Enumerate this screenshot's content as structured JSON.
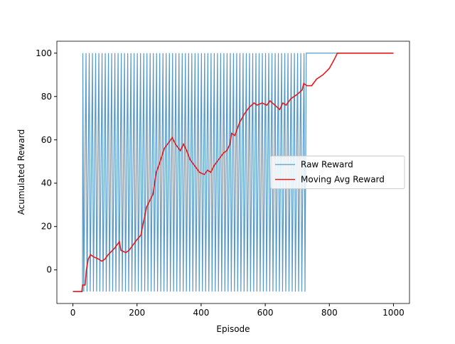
{
  "chart_data": {
    "type": "line",
    "xlabel": "Episode",
    "ylabel": "Acumulated Reward",
    "xlim": [
      -50,
      1050
    ],
    "ylim": [
      -15.5,
      105.5
    ],
    "xticks": [
      0,
      200,
      400,
      600,
      800,
      1000
    ],
    "yticks": [
      0,
      20,
      40,
      60,
      80,
      100
    ],
    "legend": "center right",
    "series": [
      {
        "name": "Raw Reward",
        "color": "#1f77b4",
        "x": [
          0,
          30,
          31,
          34,
          41,
          44,
          51,
          54,
          61,
          64,
          71,
          74,
          81,
          84,
          91,
          94,
          101,
          104,
          111,
          114,
          121,
          124,
          131,
          134,
          141,
          144,
          151,
          154,
          161,
          164,
          171,
          174,
          181,
          184,
          191,
          194,
          201,
          204,
          211,
          214,
          221,
          224,
          231,
          234,
          241,
          244,
          251,
          254,
          261,
          264,
          271,
          274,
          281,
          284,
          291,
          294,
          301,
          304,
          311,
          314,
          321,
          324,
          331,
          334,
          341,
          344,
          351,
          354,
          361,
          364,
          371,
          374,
          381,
          384,
          391,
          394,
          401,
          404,
          411,
          414,
          421,
          424,
          431,
          434,
          441,
          444,
          451,
          454,
          461,
          464,
          471,
          474,
          481,
          484,
          491,
          494,
          501,
          504,
          511,
          514,
          521,
          524,
          531,
          534,
          541,
          544,
          551,
          554,
          561,
          564,
          571,
          574,
          581,
          584,
          591,
          594,
          601,
          604,
          611,
          614,
          621,
          624,
          631,
          634,
          641,
          644,
          651,
          654,
          661,
          664,
          671,
          674,
          681,
          684,
          691,
          694,
          701,
          704,
          711,
          714,
          721,
          724,
          728,
          1000
        ],
        "values": [
          -10,
          -10,
          100,
          -10,
          100,
          -10,
          100,
          -10,
          100,
          -10,
          100,
          -10,
          100,
          -10,
          100,
          -10,
          100,
          -10,
          100,
          -10,
          100,
          -10,
          100,
          -10,
          100,
          -10,
          100,
          -10,
          100,
          -10,
          100,
          -10,
          100,
          -10,
          100,
          -10,
          100,
          -10,
          100,
          -10,
          100,
          -10,
          100,
          -10,
          100,
          -10,
          100,
          -10,
          100,
          -10,
          100,
          -10,
          100,
          -10,
          100,
          -10,
          100,
          -10,
          100,
          -10,
          100,
          -10,
          100,
          -10,
          100,
          -10,
          100,
          -10,
          100,
          -10,
          100,
          -10,
          100,
          -10,
          100,
          -10,
          100,
          -10,
          100,
          -10,
          100,
          -10,
          100,
          -10,
          100,
          -10,
          100,
          -10,
          100,
          -10,
          100,
          -10,
          100,
          -10,
          100,
          -10,
          100,
          -10,
          100,
          -10,
          100,
          -10,
          100,
          -10,
          100,
          -10,
          100,
          -10,
          100,
          -10,
          100,
          -10,
          100,
          -10,
          100,
          -10,
          100,
          -10,
          100,
          -10,
          100,
          -10,
          100,
          -10,
          100,
          -10,
          100,
          -10,
          100,
          -10,
          100,
          -10,
          100,
          -10,
          100,
          -10,
          100,
          -10,
          100,
          -10,
          100,
          -10,
          100,
          100
        ]
      },
      {
        "name": "Moving Avg Reward",
        "color": "#e41a1c",
        "x": [
          0,
          28,
          30,
          38,
          42,
          48,
          55,
          65,
          80,
          90,
          100,
          110,
          130,
          145,
          150,
          165,
          175,
          185,
          200,
          212,
          220,
          230,
          240,
          250,
          260,
          270,
          285,
          300,
          310,
          320,
          335,
          345,
          355,
          365,
          380,
          395,
          410,
          420,
          430,
          440,
          455,
          470,
          480,
          490,
          495,
          505,
          520,
          535,
          550,
          565,
          575,
          590,
          605,
          615,
          630,
          645,
          655,
          665,
          680,
          700,
          715,
          720,
          730,
          745,
          760,
          780,
          800,
          815,
          825,
          1000
        ],
        "values": [
          -10,
          -10,
          -7,
          -7,
          0,
          5,
          7,
          6,
          5,
          4,
          5,
          7,
          10,
          13,
          9,
          8,
          9,
          11,
          14,
          16,
          22,
          29,
          32,
          35,
          45,
          49,
          56,
          59,
          61,
          58,
          55,
          58,
          55,
          51,
          48,
          45,
          44,
          46,
          45,
          48,
          51,
          54,
          55,
          58,
          63,
          62,
          68,
          72,
          75,
          77,
          76,
          77,
          76,
          78,
          76,
          74,
          77,
          76,
          79,
          81,
          83,
          86,
          85,
          85,
          88,
          90,
          93,
          97,
          100,
          100
        ]
      }
    ]
  }
}
